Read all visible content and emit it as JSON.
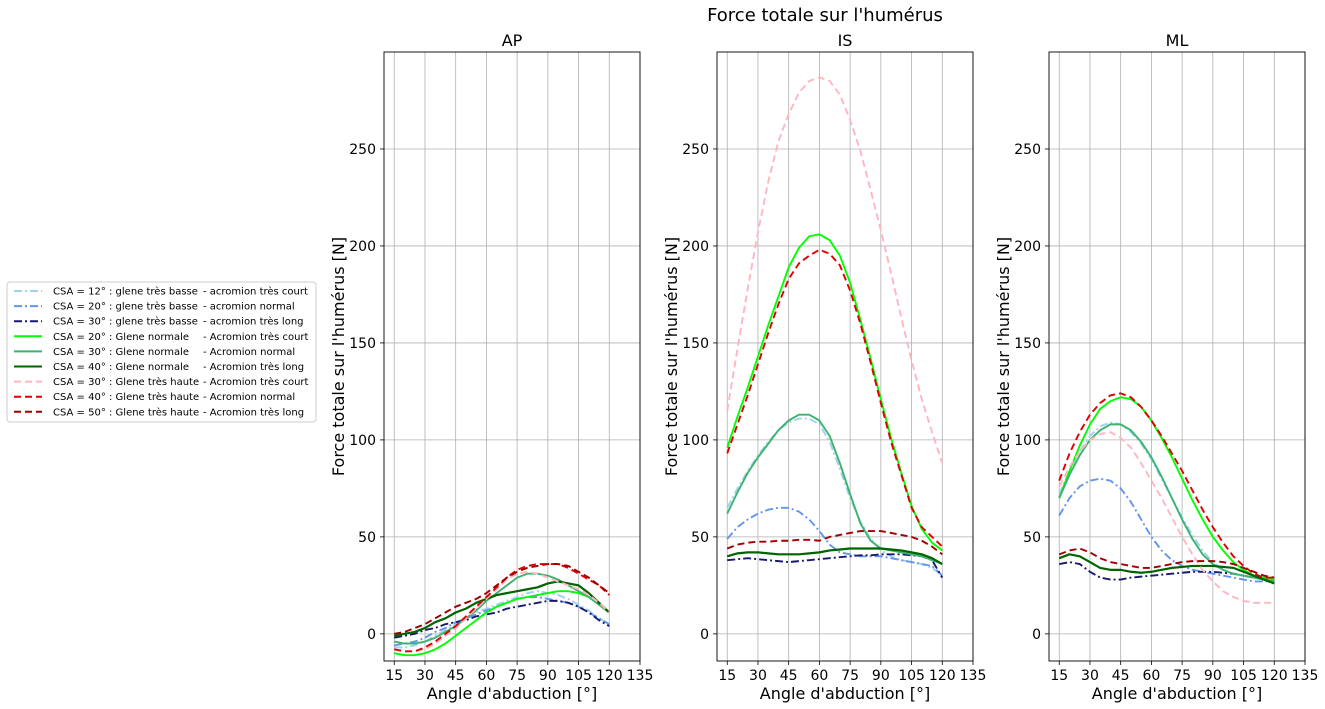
{
  "figure": {
    "suptitle": "Force totale sur l'humérus"
  },
  "legend": {
    "items": [
      {
        "csa": "CSA = 12° : glene très basse",
        "acromion": "-  acromion très court"
      },
      {
        "csa": "CSA = 20° : glene très basse",
        "acromion": "-  acromion normal"
      },
      {
        "csa": "CSA = 30° : glene très basse",
        "acromion": "-  acromion très long"
      },
      {
        "csa": "CSA = 20° : Glene normale",
        "acromion": "-  Acromion très court"
      },
      {
        "csa": "CSA = 30° : Glene normale",
        "acromion": "-  Acromion normal"
      },
      {
        "csa": "CSA = 40° : Glene normale",
        "acromion": "-  Acromion très long"
      },
      {
        "csa": "CSA = 30° : Glene très haute",
        "acromion": "-  Acromion très court"
      },
      {
        "csa": "CSA = 40° : Glene très haute",
        "acromion": "-  Acromion normal"
      },
      {
        "csa": "CSA = 50° : Glene très haute",
        "acromion": "-  Acromion très long"
      }
    ]
  },
  "chart_data": [
    {
      "type": "line",
      "title": "AP",
      "xlabel": "Angle d'abduction [°]",
      "ylabel": "Force totale sur l'humérus [N]",
      "xlim": [
        10,
        135
      ],
      "ylim": [
        -14,
        300
      ],
      "xticks": [
        15,
        30,
        45,
        60,
        75,
        90,
        105,
        120,
        135
      ],
      "yticks": [
        0,
        50,
        100,
        150,
        200,
        250
      ],
      "grid": true,
      "x": [
        15,
        20,
        25,
        30,
        35,
        40,
        45,
        50,
        55,
        60,
        65,
        70,
        75,
        80,
        85,
        90,
        95,
        100,
        105,
        110,
        115,
        120
      ],
      "series": [
        {
          "color": "#9fd3ea",
          "style": "dashdot",
          "values": [
            -7,
            -7,
            -6,
            -4,
            -1,
            2,
            5,
            8,
            11,
            13,
            15,
            17,
            19,
            21,
            22,
            21,
            20,
            18,
            15,
            12,
            8,
            5
          ]
        },
        {
          "color": "#6495ed",
          "style": "dashdot",
          "values": [
            -6,
            -5,
            -4,
            -2,
            1,
            3,
            6,
            8,
            10,
            12,
            14,
            16,
            18,
            19,
            19,
            18,
            17,
            16,
            14,
            11,
            8,
            5
          ]
        },
        {
          "color": "#191970",
          "style": "dashdot",
          "values": [
            -2,
            -1,
            0,
            2,
            3,
            5,
            6,
            7,
            9,
            10,
            11,
            13,
            14,
            15,
            16,
            17,
            17,
            16,
            14,
            11,
            7,
            4
          ]
        },
        {
          "color": "#00ff00",
          "style": "solid",
          "values": [
            -10,
            -11,
            -11,
            -10,
            -8,
            -5,
            -1,
            3,
            7,
            11,
            14,
            16,
            18,
            19,
            20,
            21,
            22,
            22,
            21,
            19,
            15,
            11
          ]
        },
        {
          "color": "#3cb371",
          "style": "solid",
          "values": [
            -4,
            -5,
            -5,
            -4,
            -2,
            1,
            4,
            8,
            12,
            17,
            21,
            25,
            29,
            31,
            31,
            30,
            28,
            25,
            22,
            19,
            15,
            11
          ]
        },
        {
          "color": "#006400",
          "style": "solid",
          "values": [
            -1,
            0,
            1,
            3,
            6,
            8,
            11,
            13,
            16,
            18,
            20,
            21,
            22,
            23,
            24,
            26,
            27,
            26,
            25,
            21,
            16,
            11
          ]
        },
        {
          "color": "#ffb6c1",
          "style": "dashed",
          "values": [
            -8,
            -9,
            -9,
            -8,
            -5,
            -1,
            3,
            8,
            13,
            18,
            23,
            28,
            31,
            32,
            31,
            29,
            27,
            25,
            23,
            20,
            16,
            11
          ]
        },
        {
          "color": "#e00000",
          "style": "dashed",
          "values": [
            -8,
            -9,
            -9,
            -7,
            -4,
            0,
            4,
            9,
            14,
            19,
            24,
            29,
            33,
            35,
            36,
            36,
            36,
            34,
            31,
            28,
            25,
            20
          ]
        },
        {
          "color": "#a00000",
          "style": "dashed",
          "values": [
            0,
            1,
            3,
            5,
            8,
            11,
            14,
            16,
            18,
            21,
            25,
            29,
            32,
            34,
            35,
            36,
            36,
            35,
            32,
            29,
            25,
            21
          ]
        }
      ]
    },
    {
      "type": "line",
      "title": "IS",
      "xlabel": "Angle d'abduction [°]",
      "ylabel": "Force totale sur l'humérus [N]",
      "xlim": [
        10,
        135
      ],
      "ylim": [
        -14,
        300
      ],
      "xticks": [
        15,
        30,
        45,
        60,
        75,
        90,
        105,
        120,
        135
      ],
      "yticks": [
        0,
        50,
        100,
        150,
        200,
        250
      ],
      "grid": true,
      "x": [
        15,
        20,
        25,
        30,
        35,
        40,
        45,
        50,
        55,
        60,
        65,
        70,
        75,
        80,
        85,
        90,
        95,
        100,
        105,
        110,
        115,
        120
      ],
      "series": [
        {
          "color": "#9fd3ea",
          "style": "dashdot",
          "values": [
            65,
            75,
            84,
            92,
            99,
            105,
            109,
            111,
            111,
            108,
            99,
            85,
            70,
            58,
            49,
            43,
            40,
            38,
            37,
            36,
            34,
            30
          ]
        },
        {
          "color": "#6495ed",
          "style": "dashdot",
          "values": [
            49,
            55,
            59,
            62,
            64,
            65,
            65,
            63,
            59,
            53,
            46,
            42,
            41,
            40,
            40,
            40,
            39,
            38,
            37,
            36,
            35,
            30
          ]
        },
        {
          "color": "#191970",
          "style": "dashdot",
          "values": [
            38,
            38.5,
            39,
            38.5,
            38,
            37.5,
            37,
            37.5,
            38,
            38.5,
            39,
            39.5,
            40,
            40.5,
            40.5,
            41,
            41,
            41,
            40.5,
            40,
            38,
            29
          ]
        },
        {
          "color": "#00ff00",
          "style": "solid",
          "values": [
            96,
            112,
            127,
            143,
            159,
            174,
            189,
            199,
            205,
            206,
            203,
            195,
            181,
            162,
            142,
            121,
            101,
            83,
            66,
            54,
            47,
            43
          ]
        },
        {
          "color": "#3cb371",
          "style": "solid",
          "values": [
            62,
            73,
            83,
            91,
            98,
            105,
            110,
            113,
            113,
            110,
            102,
            88,
            72,
            57,
            48,
            44,
            43,
            42,
            41,
            40,
            38,
            36
          ]
        },
        {
          "color": "#006400",
          "style": "solid",
          "values": [
            40,
            41.5,
            42,
            42,
            41.5,
            41,
            41,
            41,
            41.5,
            42,
            43,
            43.5,
            44,
            44,
            44,
            44,
            43.5,
            43,
            42,
            41,
            39,
            36
          ]
        },
        {
          "color": "#ffb6c1",
          "style": "dashed",
          "values": [
            115,
            147,
            178,
            207,
            233,
            254,
            268,
            279,
            285,
            287,
            285,
            278,
            265,
            249,
            229,
            208,
            186,
            163,
            141,
            121,
            104,
            88
          ]
        },
        {
          "color": "#e00000",
          "style": "dashed",
          "values": [
            93,
            108,
            123,
            139,
            155,
            170,
            183,
            191,
            195,
            198,
            196,
            190,
            177,
            160,
            140,
            119,
            99,
            82,
            65,
            55,
            50,
            45
          ]
        },
        {
          "color": "#a00000",
          "style": "dashed",
          "values": [
            44,
            46,
            47,
            47.5,
            47.5,
            48,
            48,
            48.5,
            48.5,
            48,
            50,
            51,
            52,
            53,
            53,
            53,
            52,
            51,
            50,
            48,
            45,
            41
          ]
        }
      ]
    },
    {
      "type": "line",
      "title": "ML",
      "xlabel": "Angle d'abduction [°]",
      "ylabel": "Force totale sur l'humérus [N]",
      "xlim": [
        10,
        135
      ],
      "ylim": [
        -14,
        300
      ],
      "xticks": [
        15,
        30,
        45,
        60,
        75,
        90,
        105,
        120,
        135
      ],
      "yticks": [
        0,
        50,
        100,
        150,
        200,
        250
      ],
      "grid": true,
      "x": [
        15,
        20,
        25,
        30,
        35,
        40,
        45,
        50,
        55,
        60,
        65,
        70,
        75,
        80,
        85,
        90,
        95,
        100,
        105,
        110,
        115,
        120
      ],
      "series": [
        {
          "color": "#9fd3ea",
          "style": "dashdot",
          "values": [
            72,
            84,
            94,
            102,
            107,
            109,
            108,
            104,
            98,
            90,
            80,
            70,
            60,
            51,
            43,
            37,
            33,
            31,
            30,
            29,
            28,
            28
          ]
        },
        {
          "color": "#6495ed",
          "style": "dashdot",
          "values": [
            61,
            70,
            76,
            79,
            80,
            79,
            75,
            68,
            59,
            50,
            43,
            38,
            35,
            33,
            32,
            31,
            30,
            29,
            28,
            27,
            27,
            27
          ]
        },
        {
          "color": "#191970",
          "style": "dashdot",
          "values": [
            36,
            37,
            36,
            32,
            29,
            28,
            28,
            29,
            29.5,
            30,
            30.5,
            31,
            31.5,
            32,
            32,
            32,
            31.5,
            31,
            30,
            29,
            28,
            27
          ]
        },
        {
          "color": "#00ff00",
          "style": "solid",
          "values": [
            70,
            84,
            97,
            108,
            116,
            120,
            122,
            121,
            117,
            110,
            101,
            91,
            80,
            69,
            59,
            50,
            43,
            37,
            33,
            30,
            29,
            28
          ]
        },
        {
          "color": "#3cb371",
          "style": "solid",
          "values": [
            70,
            82,
            92,
            100,
            105,
            108,
            108,
            105,
            99,
            91,
            81,
            70,
            59,
            49,
            41,
            36,
            33,
            31,
            30,
            29,
            28,
            27
          ]
        },
        {
          "color": "#006400",
          "style": "solid",
          "values": [
            39,
            41,
            40,
            37,
            34,
            33,
            33,
            32,
            31.5,
            32,
            33,
            34,
            34.5,
            35,
            35,
            35,
            34.5,
            34,
            32,
            30,
            28,
            26
          ]
        },
        {
          "color": "#ffb6c1",
          "style": "dashed",
          "values": [
            76,
            86,
            94,
            100,
            103,
            104,
            101,
            96,
            88,
            79,
            70,
            60,
            50,
            41,
            33,
            27,
            22,
            19,
            17,
            16,
            16,
            16
          ]
        },
        {
          "color": "#e00000",
          "style": "dashed",
          "values": [
            79,
            93,
            104,
            113,
            119,
            123,
            124,
            122,
            117,
            110,
            102,
            93,
            84,
            74,
            64,
            55,
            47,
            40,
            35,
            31,
            29,
            29
          ]
        },
        {
          "color": "#a00000",
          "style": "dashed",
          "values": [
            41,
            43,
            44,
            42,
            39,
            37,
            36,
            35,
            34,
            34,
            35,
            36,
            37,
            37.5,
            37.5,
            37.5,
            37,
            36,
            34,
            32,
            30,
            29
          ]
        }
      ]
    }
  ]
}
